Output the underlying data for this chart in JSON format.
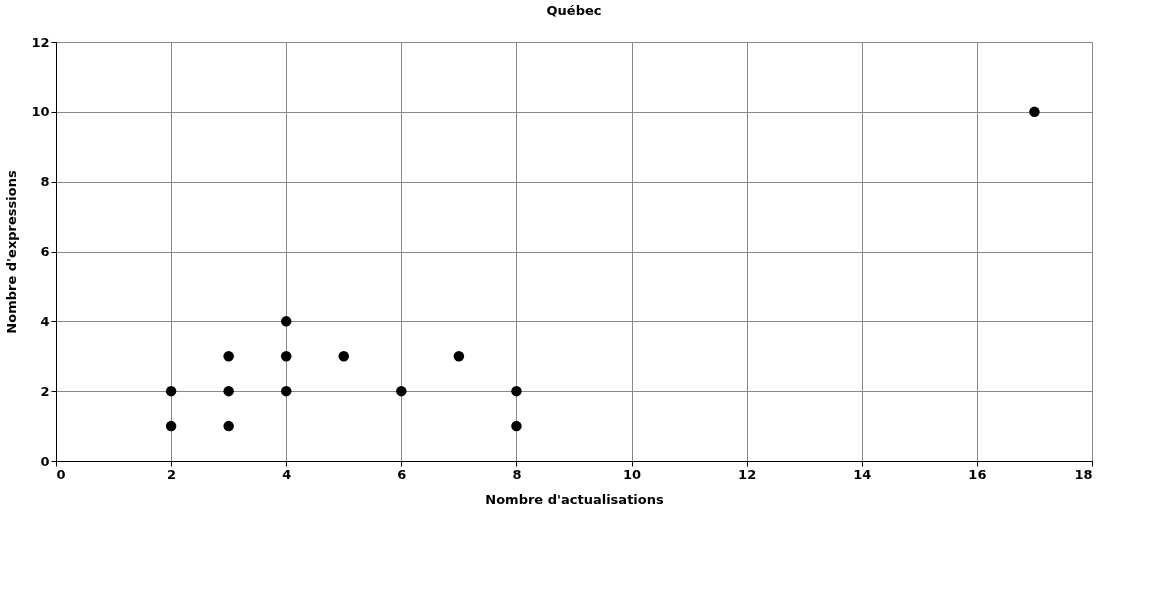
{
  "chart_data": {
    "type": "scatter",
    "title": "Québec",
    "xlabel": "Nombre d'actualisations",
    "ylabel": "Nombre d'expressions",
    "x": [
      2,
      2,
      3,
      3,
      3,
      4,
      4,
      4,
      5,
      6,
      7,
      8,
      8,
      17
    ],
    "series": [
      {
        "color": "#000000",
        "values": [
          1,
          2,
          1,
          2,
          3,
          2,
          3,
          4,
          3,
          2,
          3,
          1,
          2,
          10
        ]
      }
    ],
    "xlim": [
      0,
      18
    ],
    "xticks": [
      0,
      2,
      4,
      6,
      8,
      10,
      12,
      14,
      16,
      18
    ],
    "ylim": [
      0,
      12
    ],
    "yticks": [
      0,
      2,
      4,
      6,
      8,
      10,
      12
    ],
    "grid": true,
    "marker": "circle"
  }
}
